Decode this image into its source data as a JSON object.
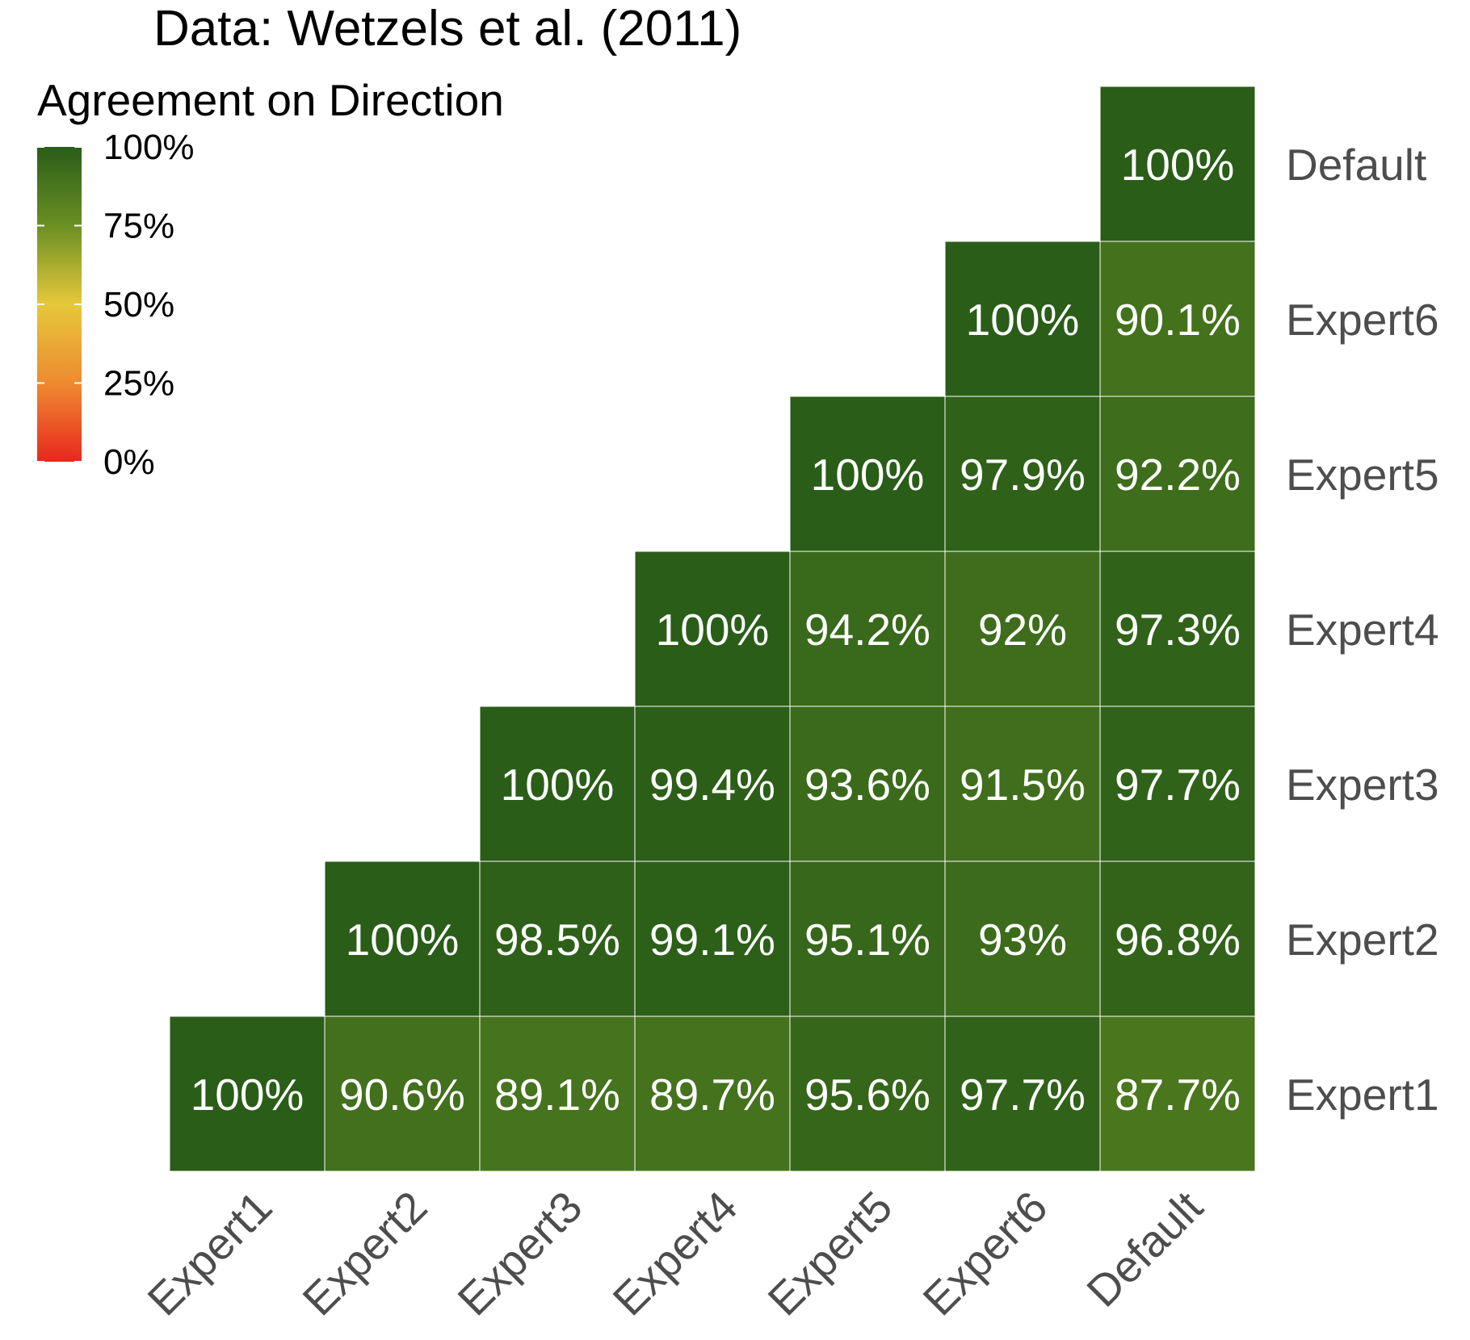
{
  "chart_data": {
    "type": "heatmap",
    "title": "Data: Wetzels et al. (2011)",
    "categories": [
      "Expert1",
      "Expert2",
      "Expert3",
      "Expert4",
      "Expert5",
      "Expert6",
      "Default"
    ],
    "cells": [
      {
        "x": "Expert1",
        "y": "Expert1",
        "value": 100,
        "label": "100%"
      },
      {
        "x": "Expert2",
        "y": "Expert1",
        "value": 90.6,
        "label": "90.6%"
      },
      {
        "x": "Expert3",
        "y": "Expert1",
        "value": 89.1,
        "label": "89.1%"
      },
      {
        "x": "Expert4",
        "y": "Expert1",
        "value": 89.7,
        "label": "89.7%"
      },
      {
        "x": "Expert5",
        "y": "Expert1",
        "value": 95.6,
        "label": "95.6%"
      },
      {
        "x": "Expert6",
        "y": "Expert1",
        "value": 97.7,
        "label": "97.7%"
      },
      {
        "x": "Default",
        "y": "Expert1",
        "value": 87.7,
        "label": "87.7%"
      },
      {
        "x": "Expert2",
        "y": "Expert2",
        "value": 100,
        "label": "100%"
      },
      {
        "x": "Expert3",
        "y": "Expert2",
        "value": 98.5,
        "label": "98.5%"
      },
      {
        "x": "Expert4",
        "y": "Expert2",
        "value": 99.1,
        "label": "99.1%"
      },
      {
        "x": "Expert5",
        "y": "Expert2",
        "value": 95.1,
        "label": "95.1%"
      },
      {
        "x": "Expert6",
        "y": "Expert2",
        "value": 93,
        "label": "93%"
      },
      {
        "x": "Default",
        "y": "Expert2",
        "value": 96.8,
        "label": "96.8%"
      },
      {
        "x": "Expert3",
        "y": "Expert3",
        "value": 100,
        "label": "100%"
      },
      {
        "x": "Expert4",
        "y": "Expert3",
        "value": 99.4,
        "label": "99.4%"
      },
      {
        "x": "Expert5",
        "y": "Expert3",
        "value": 93.6,
        "label": "93.6%"
      },
      {
        "x": "Expert6",
        "y": "Expert3",
        "value": 91.5,
        "label": "91.5%"
      },
      {
        "x": "Default",
        "y": "Expert3",
        "value": 97.7,
        "label": "97.7%"
      },
      {
        "x": "Expert4",
        "y": "Expert4",
        "value": 100,
        "label": "100%"
      },
      {
        "x": "Expert5",
        "y": "Expert4",
        "value": 94.2,
        "label": "94.2%"
      },
      {
        "x": "Expert6",
        "y": "Expert4",
        "value": 92,
        "label": "92%"
      },
      {
        "x": "Default",
        "y": "Expert4",
        "value": 97.3,
        "label": "97.3%"
      },
      {
        "x": "Expert5",
        "y": "Expert5",
        "value": 100,
        "label": "100%"
      },
      {
        "x": "Expert6",
        "y": "Expert5",
        "value": 97.9,
        "label": "97.9%"
      },
      {
        "x": "Default",
        "y": "Expert5",
        "value": 92.2,
        "label": "92.2%"
      },
      {
        "x": "Expert6",
        "y": "Expert6",
        "value": 100,
        "label": "100%"
      },
      {
        "x": "Default",
        "y": "Expert6",
        "value": 90.1,
        "label": "90.1%"
      },
      {
        "x": "Default",
        "y": "Default",
        "value": 100,
        "label": "100%"
      }
    ],
    "legend": {
      "title": "Agreement on Direction",
      "ticks": [
        {
          "value": 100,
          "label": "100%"
        },
        {
          "value": 75,
          "label": "75%"
        },
        {
          "value": 50,
          "label": "50%"
        },
        {
          "value": 25,
          "label": "25%"
        },
        {
          "value": 0,
          "label": "0%"
        }
      ],
      "range": [
        0,
        100
      ],
      "placement": "top-left"
    },
    "color_scale": [
      {
        "value": 0,
        "color": "#e8281e"
      },
      {
        "value": 25,
        "color": "#ee8a30"
      },
      {
        "value": 50,
        "color": "#e6c83a"
      },
      {
        "value": 75,
        "color": "#6b8f23"
      },
      {
        "value": 100,
        "color": "#2a5d18"
      }
    ]
  }
}
